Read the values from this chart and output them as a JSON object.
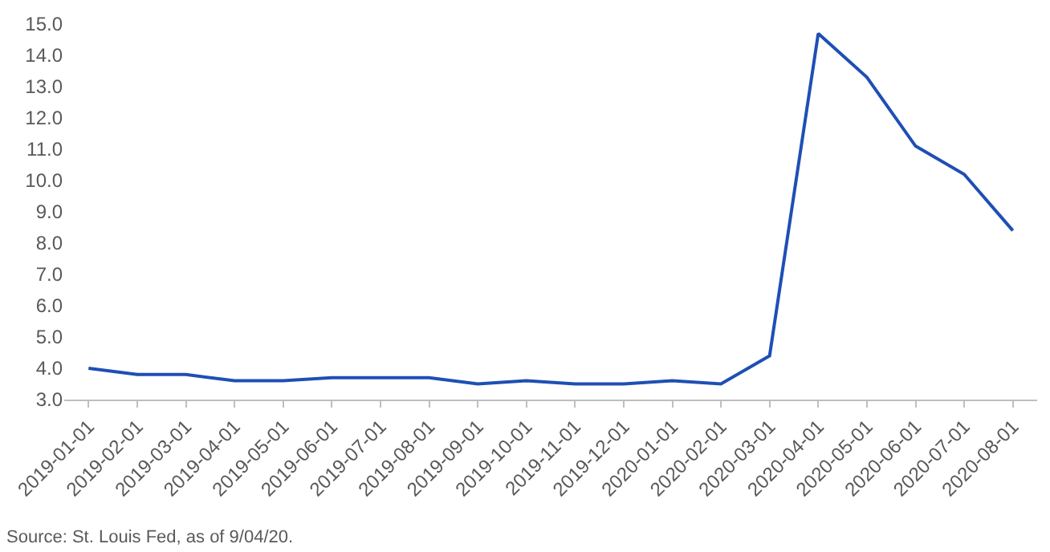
{
  "chart_data": {
    "type": "line",
    "categories": [
      "2019-01-01",
      "2019-02-01",
      "2019-03-01",
      "2019-04-01",
      "2019-05-01",
      "2019-06-01",
      "2019-07-01",
      "2019-08-01",
      "2019-09-01",
      "2019-10-01",
      "2019-11-01",
      "2019-12-01",
      "2020-01-01",
      "2020-02-01",
      "2020-03-01",
      "2020-04-01",
      "2020-05-01",
      "2020-06-01",
      "2020-07-01",
      "2020-08-01"
    ],
    "series": [
      {
        "color": "#1f4fb4",
        "values": [
          4.0,
          3.8,
          3.8,
          3.6,
          3.6,
          3.7,
          3.7,
          3.7,
          3.5,
          3.6,
          3.5,
          3.5,
          3.6,
          3.5,
          4.4,
          14.7,
          13.3,
          11.1,
          10.2,
          8.4
        ]
      }
    ],
    "ylim": [
      3,
      15
    ],
    "yticks": [
      {
        "value": 3,
        "label": "3.0"
      },
      {
        "value": 4,
        "label": "4.0"
      },
      {
        "value": 5,
        "label": "5.0"
      },
      {
        "value": 6,
        "label": "6.0"
      },
      {
        "value": 7,
        "label": "7.0"
      },
      {
        "value": 8,
        "label": "8.0"
      },
      {
        "value": 9,
        "label": "9.0"
      },
      {
        "value": 10,
        "label": "10.0"
      },
      {
        "value": 11,
        "label": "11.0"
      },
      {
        "value": 12,
        "label": "12.0"
      },
      {
        "value": 13,
        "label": "13.0"
      },
      {
        "value": 14,
        "label": "14.0"
      },
      {
        "value": 15,
        "label": "15.0"
      }
    ],
    "marker": "none",
    "line_style": "solid",
    "annotations": [
      "Source: St. Louis Fed, as of 9/04/20."
    ]
  }
}
